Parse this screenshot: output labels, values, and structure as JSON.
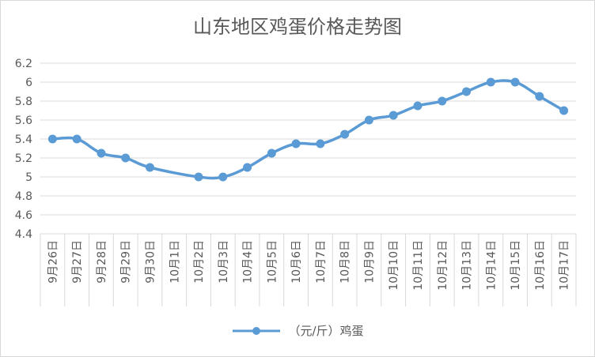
{
  "chart_data": {
    "type": "line",
    "title": "山东地区鸡蛋价格走势图",
    "categories": [
      "9月26日",
      "9月27日",
      "9月28日",
      "9月29日",
      "9月30日",
      "10月1日",
      "10月2日",
      "10月3日",
      "10月4日",
      "10月5日",
      "10月6日",
      "10月7日",
      "10月8日",
      "10月9日",
      "10月10日",
      "10月11日",
      "10月12日",
      "10月13日",
      "10月14日",
      "10月15日",
      "10月16日",
      "10月17日"
    ],
    "series": [
      {
        "name": "（元/斤）鸡蛋",
        "values": [
          5.4,
          5.4,
          5.25,
          5.2,
          5.1,
          null,
          5.0,
          5.0,
          5.1,
          5.25,
          5.35,
          5.35,
          5.45,
          5.6,
          5.65,
          5.75,
          5.8,
          5.9,
          6.0,
          6.0,
          5.85,
          5.7
        ]
      }
    ],
    "ylim": [
      4.4,
      6.2
    ],
    "yticks": [
      "4.4",
      "4.6",
      "4.8",
      "5",
      "5.2",
      "5.4",
      "5.6",
      "5.8",
      "6",
      "6.2"
    ],
    "xlabel": "",
    "ylabel": "",
    "grid": true,
    "legend": "bottom",
    "colors": {
      "line": "#5b9bd5",
      "grid": "#d9d9d9",
      "text": "#595959"
    }
  }
}
